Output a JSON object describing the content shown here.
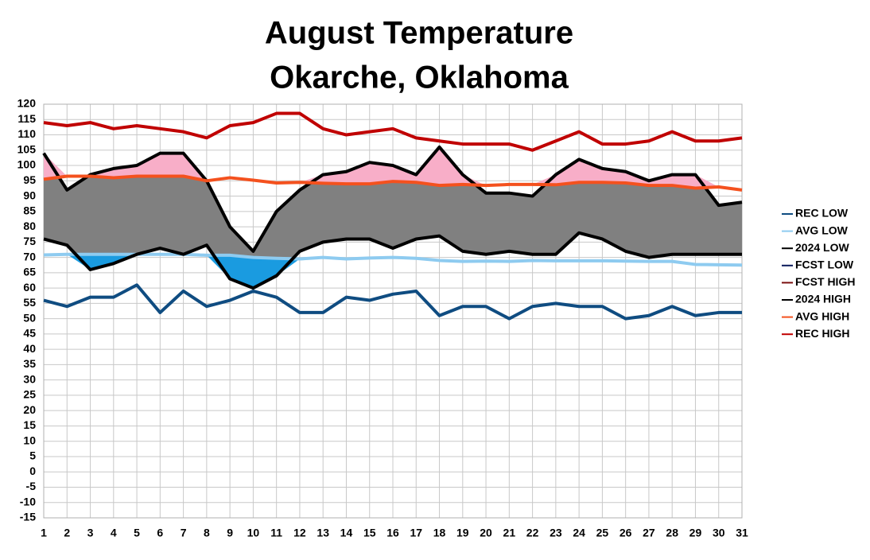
{
  "chart_data": {
    "type": "line",
    "title": "August Temperature",
    "subtitle": "Okarche, Oklahoma",
    "x": [
      1,
      2,
      3,
      4,
      5,
      6,
      7,
      8,
      9,
      10,
      11,
      12,
      13,
      14,
      15,
      16,
      17,
      18,
      19,
      20,
      21,
      22,
      23,
      24,
      25,
      26,
      27,
      28,
      29,
      30,
      31
    ],
    "xlim": [
      1,
      31
    ],
    "xticks": [
      1,
      2,
      3,
      4,
      5,
      6,
      7,
      8,
      9,
      10,
      11,
      12,
      13,
      14,
      15,
      16,
      17,
      18,
      19,
      20,
      21,
      22,
      23,
      24,
      25,
      26,
      27,
      28,
      29,
      30,
      31
    ],
    "ylim": [
      -15,
      120
    ],
    "yticks": [
      -15,
      -10,
      -5,
      0,
      5,
      10,
      15,
      20,
      25,
      30,
      35,
      40,
      45,
      50,
      55,
      60,
      65,
      70,
      75,
      80,
      85,
      90,
      95,
      100,
      105,
      110,
      115,
      120
    ],
    "grid": true,
    "legend": "right",
    "series": [
      {
        "name": "REC LOW",
        "color": "#0f4c81",
        "values": [
          56,
          54,
          57,
          57,
          61,
          52,
          59,
          54,
          56,
          59,
          57,
          52,
          52,
          57,
          56,
          58,
          59,
          51,
          54,
          54,
          50,
          54,
          55,
          54,
          54,
          50,
          51,
          54,
          51,
          52,
          52
        ]
      },
      {
        "name": "AVG LOW",
        "color": "#8ecbf0",
        "values": [
          70.8,
          71,
          71,
          71,
          71,
          71,
          71,
          70.7,
          70.7,
          70,
          69.7,
          69.5,
          70,
          69.5,
          69.8,
          70,
          69.7,
          69,
          68.7,
          68.8,
          68.7,
          69,
          68.9,
          68.9,
          68.9,
          68.8,
          68.7,
          68.7,
          67.7,
          67.6,
          67.5
        ]
      },
      {
        "name": "2024 LOW",
        "color": "#000000",
        "values": [
          76,
          74,
          66,
          68,
          71,
          73,
          71,
          74,
          63,
          60,
          64,
          72,
          75,
          76,
          76,
          73,
          76,
          77,
          72,
          71,
          72,
          71,
          71,
          78,
          76,
          72,
          70,
          71,
          71,
          71,
          71
        ]
      },
      {
        "name": "FCST LOW",
        "color": "#0a1a5c",
        "values": [
          null,
          null,
          null,
          null,
          null,
          null,
          null,
          null,
          null,
          null,
          null,
          null,
          null,
          null,
          null,
          null,
          null,
          null,
          null,
          null,
          null,
          null,
          null,
          null,
          null,
          null,
          null,
          null,
          null,
          null,
          null
        ]
      },
      {
        "name": "FCST HIGH",
        "color": "#7b1010",
        "values": [
          null,
          null,
          null,
          null,
          null,
          null,
          null,
          null,
          null,
          null,
          null,
          null,
          null,
          null,
          null,
          null,
          null,
          null,
          null,
          null,
          null,
          null,
          null,
          null,
          null,
          null,
          null,
          null,
          null,
          null,
          null
        ]
      },
      {
        "name": "2024 HIGH",
        "color": "#000000",
        "values": [
          104,
          92,
          97,
          99,
          100,
          104,
          104,
          95,
          80,
          72,
          85,
          92,
          97,
          98,
          101,
          100,
          97,
          106,
          97,
          91,
          91,
          90,
          97,
          102,
          99,
          98,
          95,
          97,
          97,
          87,
          88
        ]
      },
      {
        "name": "AVG HIGH",
        "color": "#f4511e",
        "values": [
          95.5,
          96.5,
          96.5,
          96,
          96.5,
          96.5,
          96.5,
          95,
          96,
          95.2,
          94.3,
          94.5,
          94.2,
          94,
          94,
          94.8,
          94.5,
          93.5,
          93.8,
          93.5,
          93.8,
          93.8,
          93.7,
          94.5,
          94.5,
          94.3,
          93.5,
          93.5,
          92.6,
          93,
          92
        ]
      },
      {
        "name": "REC HIGH",
        "color": "#c00000",
        "values": [
          114,
          113,
          114,
          112,
          113,
          112,
          111,
          109,
          113,
          114,
          117,
          117,
          112,
          110,
          111,
          112,
          109,
          108,
          107,
          107,
          107,
          105,
          108,
          111,
          107,
          107,
          108,
          111,
          108,
          108,
          109
        ]
      }
    ]
  }
}
